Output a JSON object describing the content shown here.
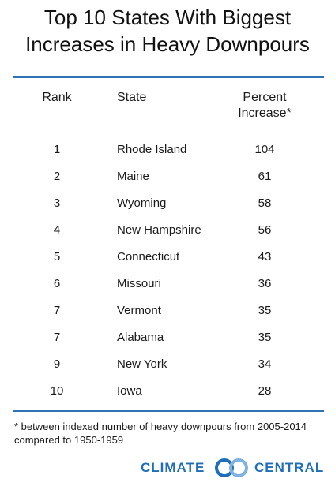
{
  "header": {
    "title": [
      "Top 10 States With Biggest",
      "Increases in Heavy Downpours"
    ]
  },
  "table": {
    "columns": [
      "Rank",
      "State",
      "Percent Increase*"
    ],
    "rows": [
      [
        1,
        "Rhode Island",
        104
      ],
      [
        2,
        "Maine",
        61
      ],
      [
        3,
        "Wyoming",
        58
      ],
      [
        4,
        "New Hampshire",
        56
      ],
      [
        5,
        "Connecticut",
        43
      ],
      [
        6,
        "Missouri",
        36
      ],
      [
        7,
        "Vermont",
        35
      ],
      [
        7,
        "Alabama",
        35
      ],
      [
        9,
        "New York",
        34
      ],
      [
        10,
        "Iowa",
        28
      ]
    ]
  },
  "footnote": "* between indexed number of heavy downpours from 2005-2014 compared to 1950-1959",
  "logo": {
    "left": "CLIMATE",
    "right": "CENTRAL"
  }
}
